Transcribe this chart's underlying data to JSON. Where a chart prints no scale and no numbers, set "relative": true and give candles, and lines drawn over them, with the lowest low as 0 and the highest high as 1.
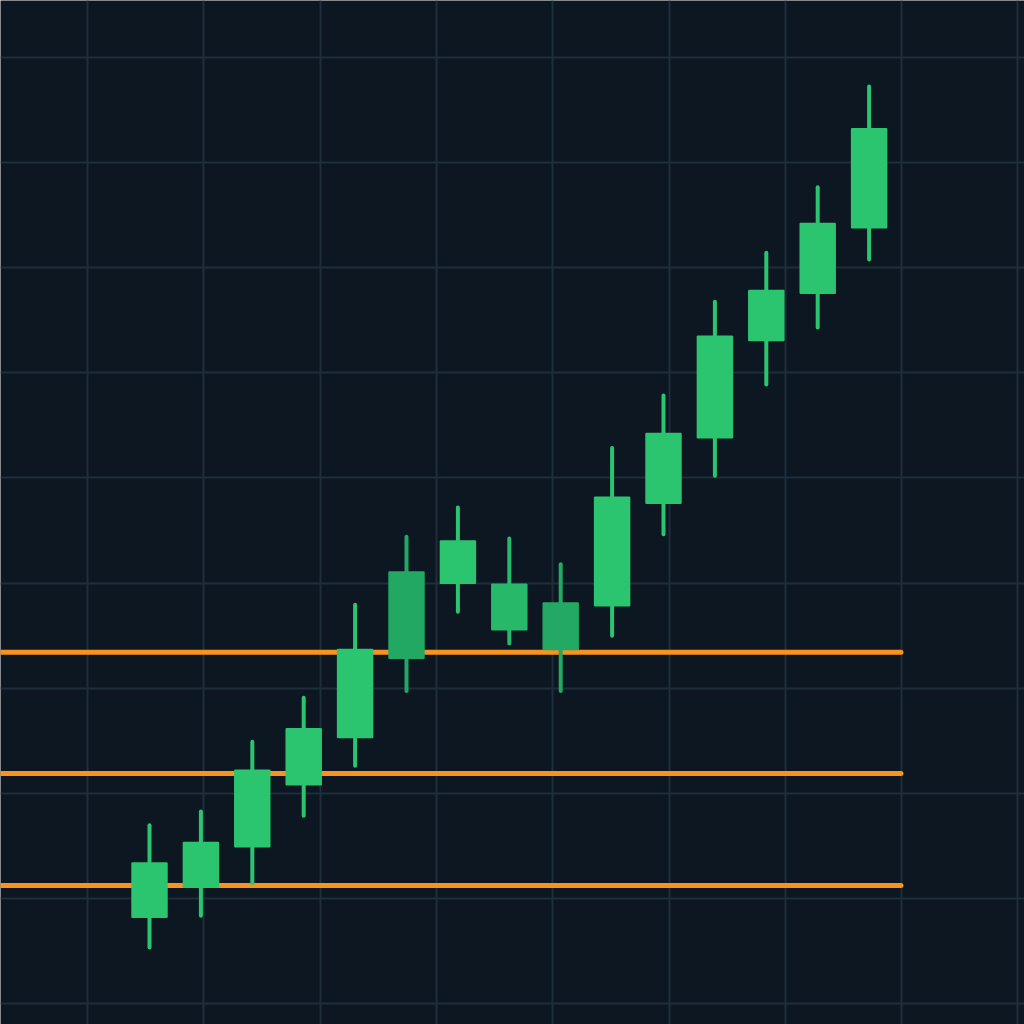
{
  "chart_data": {
    "type": "candlestick",
    "relative": true,
    "categories": [
      null,
      null,
      null,
      null,
      null,
      null,
      null,
      null,
      null,
      null,
      null,
      null,
      null,
      null,
      null
    ],
    "ohlc": [
      [
        0.035,
        0.142,
        0.0,
        0.098
      ],
      [
        0.07,
        0.158,
        0.037,
        0.122
      ],
      [
        0.117,
        0.239,
        0.075,
        0.206
      ],
      [
        0.189,
        0.29,
        0.153,
        0.254
      ],
      [
        0.244,
        0.398,
        0.211,
        0.346
      ],
      [
        0.336,
        0.477,
        0.298,
        0.436
      ],
      [
        0.423,
        0.511,
        0.39,
        0.472
      ],
      [
        0.369,
        0.475,
        0.353,
        0.422
      ],
      [
        0.346,
        0.445,
        0.298,
        0.4
      ],
      [
        0.397,
        0.58,
        0.362,
        0.523
      ],
      [
        0.516,
        0.641,
        0.48,
        0.597
      ],
      [
        0.592,
        0.75,
        0.548,
        0.71
      ],
      [
        0.705,
        0.807,
        0.654,
        0.763
      ],
      [
        0.76,
        0.883,
        0.72,
        0.841
      ],
      [
        0.836,
        1.0,
        0.799,
        0.951
      ]
    ],
    "colors": [
      "#2cc56f",
      "#2cc56f",
      "#2cc56f",
      "#2cc56f",
      "#2cc56f",
      "#22a862",
      "#2cc56f",
      "#28b86a",
      "#24a964",
      "#2cc56f",
      "#2cc56f",
      "#2cc56f",
      "#2cc56f",
      "#2cc56f",
      "#2cc56f"
    ],
    "grid": true,
    "tick_labels": false,
    "ref_lines": [
      {
        "axis": "y",
        "value": 0.343,
        "color": "#f7931e"
      },
      {
        "axis": "y",
        "value": 0.202,
        "color": "#f7931e"
      },
      {
        "axis": "y",
        "value": 0.072,
        "color": "#f7931e"
      }
    ]
  }
}
